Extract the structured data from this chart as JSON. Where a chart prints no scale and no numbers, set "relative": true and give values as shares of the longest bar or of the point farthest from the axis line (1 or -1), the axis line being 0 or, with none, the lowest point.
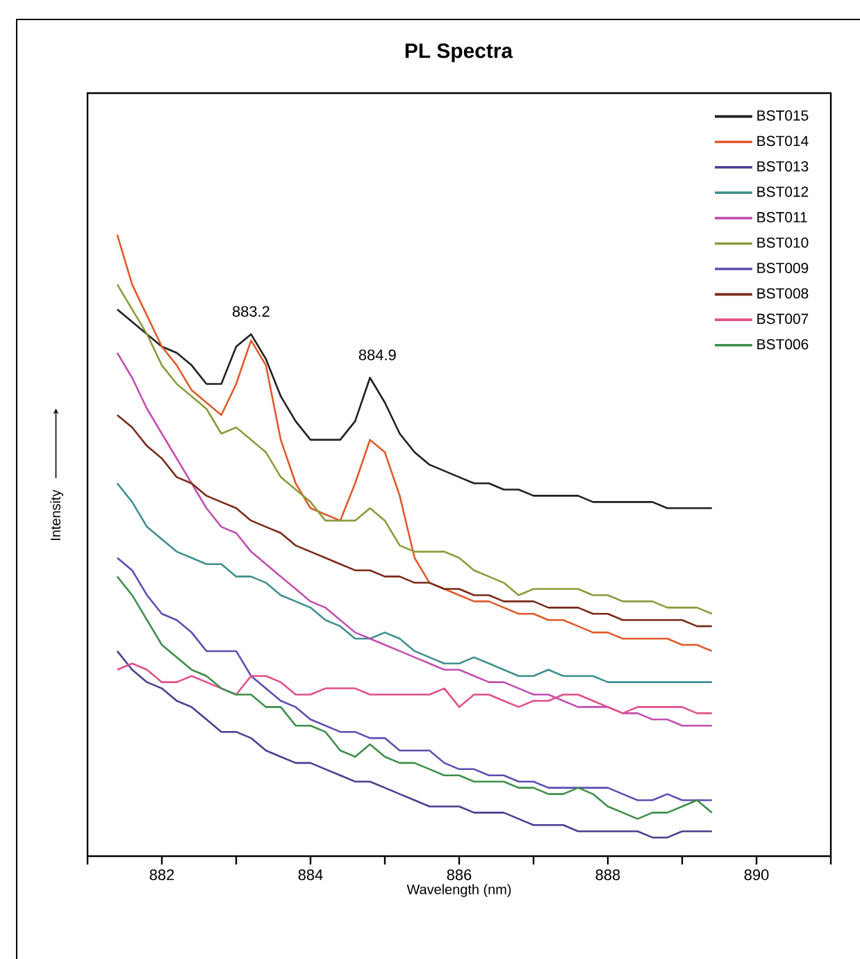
{
  "chart_data": {
    "type": "line",
    "title": "PL Spectra",
    "xlabel": "Wavelength (nm)",
    "ylabel": "Intensity",
    "relative": true,
    "legend": "top right",
    "xlim": [
      881,
      891
    ],
    "xticks": [
      {
        "value": 881,
        "label": null
      },
      882,
      {
        "value": 883,
        "label": null
      },
      884,
      {
        "value": 885,
        "label": null
      },
      886,
      {
        "value": 887,
        "label": null
      },
      888,
      {
        "value": 889,
        "label": null
      },
      890,
      {
        "value": 891,
        "label": null
      }
    ],
    "annotations": [
      {
        "text": "883.2",
        "x": 883.2,
        "y": 0.84
      },
      {
        "text": "884.9",
        "x": 884.9,
        "y": 0.77
      }
    ],
    "x": [
      881.4,
      881.6,
      881.8,
      882.0,
      882.2,
      882.4,
      882.6,
      882.8,
      883.0,
      883.2,
      883.4,
      883.6,
      883.8,
      884.0,
      884.2,
      884.4,
      884.6,
      884.8,
      885.0,
      885.2,
      885.4,
      885.6,
      885.8,
      886.0,
      886.2,
      886.4,
      886.6,
      886.8,
      887.0,
      887.2,
      887.4,
      887.6,
      887.8,
      888.0,
      888.2,
      888.4,
      888.6,
      888.8,
      889.0,
      889.2,
      889.4
    ],
    "series": [
      {
        "name": "BST015",
        "color": "#231f20",
        "values": [
          0.88,
          0.86,
          0.84,
          0.82,
          0.81,
          0.79,
          0.76,
          0.76,
          0.82,
          0.84,
          0.8,
          0.74,
          0.7,
          0.67,
          0.67,
          0.67,
          0.7,
          0.77,
          0.73,
          0.68,
          0.65,
          0.63,
          0.62,
          0.61,
          0.6,
          0.6,
          0.59,
          0.59,
          0.58,
          0.58,
          0.58,
          0.58,
          0.57,
          0.57,
          0.57,
          0.57,
          0.57,
          0.56,
          0.56,
          0.56,
          0.56
        ]
      },
      {
        "name": "BST014",
        "color": "#e05a2b",
        "values": [
          1.0,
          0.92,
          0.87,
          0.82,
          0.79,
          0.75,
          0.73,
          0.71,
          0.76,
          0.83,
          0.79,
          0.67,
          0.6,
          0.56,
          0.55,
          0.54,
          0.6,
          0.67,
          0.65,
          0.58,
          0.48,
          0.44,
          0.43,
          0.42,
          0.41,
          0.41,
          0.4,
          0.39,
          0.39,
          0.38,
          0.38,
          0.37,
          0.36,
          0.36,
          0.35,
          0.35,
          0.35,
          0.35,
          0.34,
          0.34,
          0.33
        ]
      },
      {
        "name": "BST013",
        "color": "#4a3f8f",
        "values": [
          0.33,
          0.3,
          0.28,
          0.27,
          0.25,
          0.24,
          0.22,
          0.2,
          0.2,
          0.19,
          0.17,
          0.16,
          0.15,
          0.15,
          0.14,
          0.13,
          0.12,
          0.12,
          0.11,
          0.1,
          0.09,
          0.08,
          0.08,
          0.08,
          0.07,
          0.07,
          0.07,
          0.06,
          0.05,
          0.05,
          0.05,
          0.04,
          0.04,
          0.04,
          0.04,
          0.04,
          0.03,
          0.03,
          0.04,
          0.04,
          0.04
        ]
      },
      {
        "name": "BST012",
        "color": "#3f8f8f",
        "values": [
          0.6,
          0.57,
          0.53,
          0.51,
          0.49,
          0.48,
          0.47,
          0.47,
          0.45,
          0.45,
          0.44,
          0.42,
          0.41,
          0.4,
          0.38,
          0.37,
          0.35,
          0.35,
          0.36,
          0.35,
          0.33,
          0.32,
          0.31,
          0.31,
          0.32,
          0.31,
          0.3,
          0.29,
          0.29,
          0.3,
          0.29,
          0.29,
          0.29,
          0.28,
          0.28,
          0.28,
          0.28,
          0.28,
          0.28,
          0.28,
          0.28
        ]
      },
      {
        "name": "BST011",
        "color": "#c050b0",
        "values": [
          0.81,
          0.77,
          0.72,
          0.68,
          0.64,
          0.6,
          0.56,
          0.53,
          0.52,
          0.49,
          0.47,
          0.45,
          0.43,
          0.41,
          0.4,
          0.38,
          0.36,
          0.35,
          0.34,
          0.33,
          0.32,
          0.31,
          0.3,
          0.3,
          0.29,
          0.28,
          0.28,
          0.27,
          0.26,
          0.26,
          0.25,
          0.24,
          0.24,
          0.24,
          0.23,
          0.23,
          0.22,
          0.22,
          0.21,
          0.21,
          0.21
        ]
      },
      {
        "name": "BST010",
        "color": "#8c9a3c",
        "values": [
          0.92,
          0.88,
          0.84,
          0.79,
          0.76,
          0.74,
          0.72,
          0.68,
          0.69,
          0.67,
          0.65,
          0.61,
          0.59,
          0.57,
          0.54,
          0.54,
          0.54,
          0.56,
          0.54,
          0.5,
          0.49,
          0.49,
          0.49,
          0.48,
          0.46,
          0.45,
          0.44,
          0.42,
          0.43,
          0.43,
          0.43,
          0.43,
          0.42,
          0.42,
          0.41,
          0.41,
          0.41,
          0.4,
          0.4,
          0.4,
          0.39
        ]
      },
      {
        "name": "BST009",
        "color": "#5a4fb0",
        "values": [
          0.48,
          0.46,
          0.42,
          0.39,
          0.38,
          0.36,
          0.33,
          0.33,
          0.33,
          0.29,
          0.27,
          0.25,
          0.24,
          0.22,
          0.21,
          0.2,
          0.2,
          0.19,
          0.19,
          0.17,
          0.17,
          0.17,
          0.15,
          0.14,
          0.14,
          0.13,
          0.13,
          0.12,
          0.12,
          0.11,
          0.11,
          0.11,
          0.11,
          0.11,
          0.1,
          0.09,
          0.09,
          0.1,
          0.09,
          0.09,
          0.09
        ]
      },
      {
        "name": "BST008",
        "color": "#7a2a1a",
        "values": [
          0.71,
          0.69,
          0.66,
          0.64,
          0.61,
          0.6,
          0.58,
          0.57,
          0.56,
          0.54,
          0.53,
          0.52,
          0.5,
          0.49,
          0.48,
          0.47,
          0.46,
          0.46,
          0.45,
          0.45,
          0.44,
          0.44,
          0.43,
          0.43,
          0.42,
          0.42,
          0.41,
          0.41,
          0.41,
          0.4,
          0.4,
          0.4,
          0.39,
          0.39,
          0.38,
          0.38,
          0.38,
          0.38,
          0.38,
          0.37,
          0.37
        ]
      },
      {
        "name": "BST007",
        "color": "#e0508a",
        "values": [
          0.3,
          0.31,
          0.3,
          0.28,
          0.28,
          0.29,
          0.28,
          0.27,
          0.26,
          0.29,
          0.29,
          0.28,
          0.26,
          0.26,
          0.27,
          0.27,
          0.27,
          0.26,
          0.26,
          0.26,
          0.26,
          0.26,
          0.27,
          0.24,
          0.26,
          0.26,
          0.25,
          0.24,
          0.25,
          0.25,
          0.26,
          0.26,
          0.25,
          0.24,
          0.23,
          0.24,
          0.24,
          0.24,
          0.24,
          0.23,
          0.23
        ]
      },
      {
        "name": "BST006",
        "color": "#3f8f4a",
        "values": [
          0.45,
          0.42,
          0.38,
          0.34,
          0.32,
          0.3,
          0.29,
          0.27,
          0.26,
          0.26,
          0.24,
          0.24,
          0.21,
          0.21,
          0.2,
          0.17,
          0.16,
          0.18,
          0.16,
          0.15,
          0.15,
          0.14,
          0.13,
          0.13,
          0.12,
          0.12,
          0.12,
          0.11,
          0.11,
          0.1,
          0.1,
          0.11,
          0.1,
          0.08,
          0.07,
          0.06,
          0.07,
          0.07,
          0.08,
          0.09,
          0.07
        ]
      }
    ]
  }
}
